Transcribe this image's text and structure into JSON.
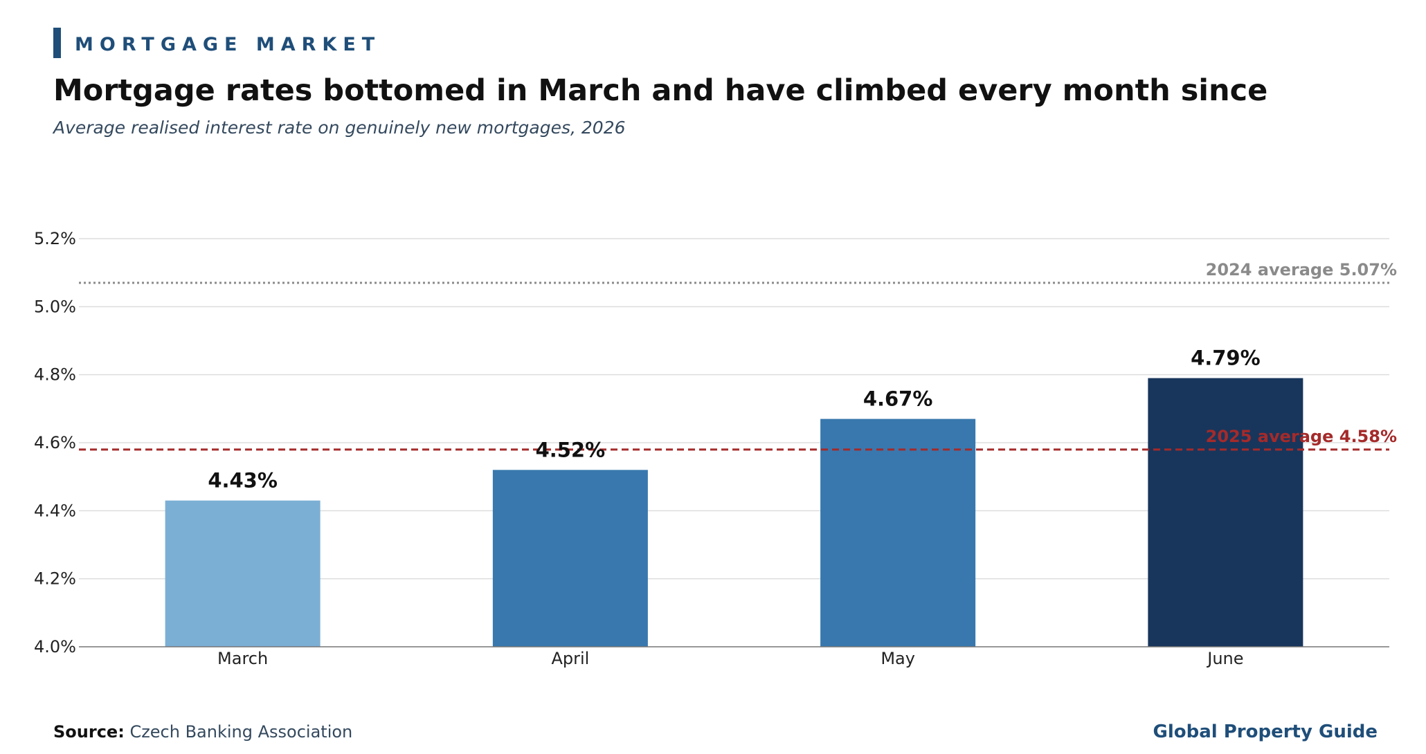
{
  "header": {
    "kicker": "MORTGAGE MARKET",
    "title": "Mortgage rates bottomed in March and have climbed every month since",
    "subtitle": "Average realised interest rate on genuinely new mortgages, 2026"
  },
  "footer": {
    "source_label": "Source:",
    "source_value": "Czech Banking Association",
    "brand": "Global Property Guide"
  },
  "colors": {
    "accent": "#1f4e79",
    "bar_march": "#7bafd4",
    "bar_april": "#3878ae",
    "bar_may": "#3878ae",
    "bar_june": "#18365c",
    "ref_2024": "#8a8a8a",
    "ref_2025": "#a52a2a",
    "grid": "#dddddd"
  },
  "chart_data": {
    "type": "bar",
    "categories": [
      "March",
      "April",
      "May",
      "June"
    ],
    "values": [
      4.43,
      4.52,
      4.67,
      4.79
    ],
    "value_labels": [
      "4.43%",
      "4.52%",
      "4.67%",
      "4.79%"
    ],
    "ylim": [
      4.0,
      5.2
    ],
    "yticks": [
      4.0,
      4.2,
      4.4,
      4.6,
      4.8,
      5.0,
      5.2
    ],
    "ytick_labels": [
      "4.0%",
      "4.2%",
      "4.4%",
      "4.6%",
      "4.8%",
      "5.0%",
      "5.2%"
    ],
    "grid": true,
    "reference_lines": [
      {
        "label": "2024 average 5.07%",
        "value": 5.07,
        "style": "dotted",
        "color": "#8a8a8a"
      },
      {
        "label": "2025 average 4.58%",
        "value": 4.58,
        "style": "dashed",
        "color": "#a52a2a"
      }
    ]
  }
}
